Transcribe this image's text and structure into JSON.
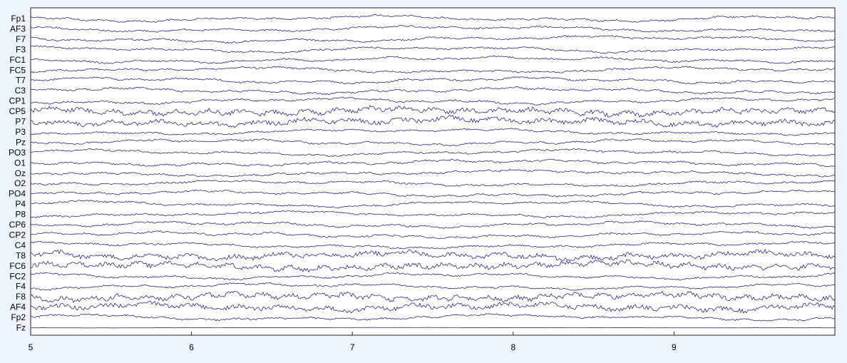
{
  "chart_data": {
    "type": "line",
    "title": "",
    "xlabel": "",
    "ylabel": "",
    "xlim": [
      5,
      10
    ],
    "xticks": [
      "5",
      "6",
      "7",
      "8",
      "9"
    ],
    "grid": false,
    "trace_color": "#1a1a80",
    "background": "#eef4fd",
    "channels": [
      "Fp1",
      "AF3",
      "F7",
      "F3",
      "FC1",
      "FC5",
      "T7",
      "C3",
      "CP1",
      "CP5",
      "P7",
      "P3",
      "Pz",
      "PO3",
      "O1",
      "Oz",
      "O2",
      "PO4",
      "P4",
      "P8",
      "CP6",
      "CP2",
      "C4",
      "T8",
      "FC6",
      "FC2",
      "F4",
      "F8",
      "AF4",
      "Fp2",
      "Fz"
    ]
  }
}
